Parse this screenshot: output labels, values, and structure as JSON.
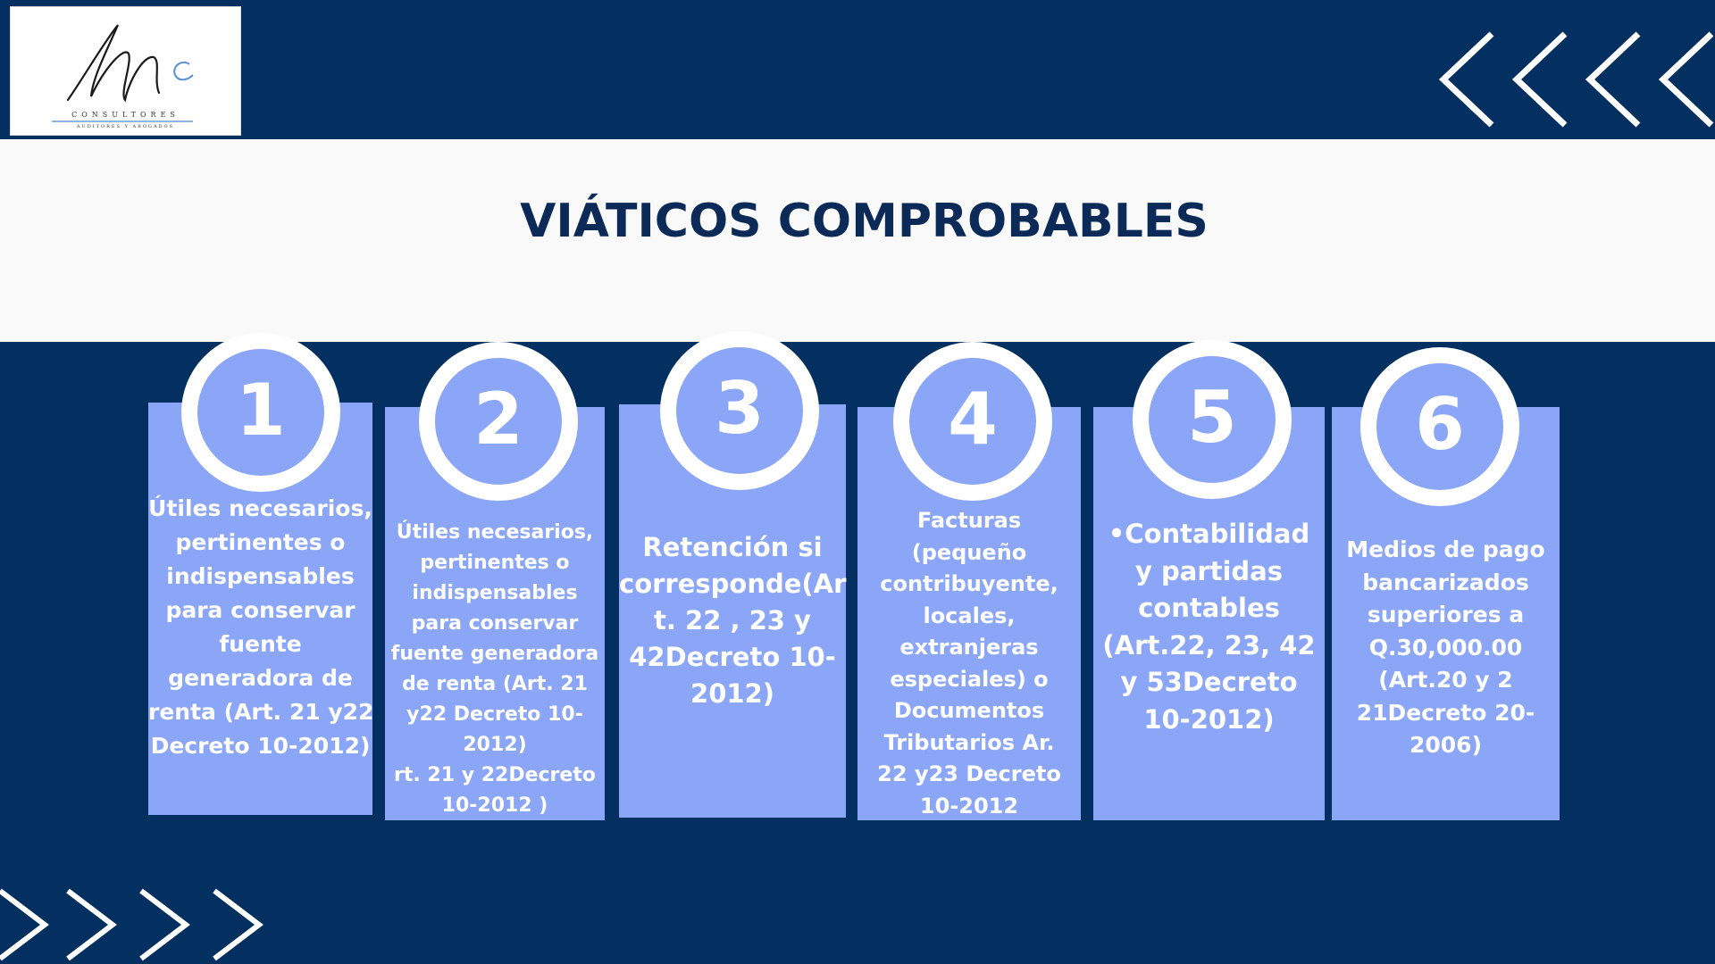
{
  "logo": {
    "mark": "Mc",
    "line1": "CONSULTORES",
    "line2": "AUDITORES Y ABOGADOS"
  },
  "title": "VIÁTICOS COMPROBABLES",
  "colors": {
    "background": "#033060",
    "band": "#f9f9fa",
    "title": "#0b2a57",
    "card": "#8ba6f6",
    "text": "#ffffff"
  },
  "decorations": {
    "top_right": "chevron-left-icon",
    "bottom_left": "chevron-right-icon"
  },
  "cards": [
    {
      "number": "1",
      "lines": [
        "Útiles necesarios,",
        "pertinentes o",
        "indispensables",
        "para conservar",
        "fuente",
        "generadora de",
        "renta (Art. 21 y22",
        "Decreto 10-2012)"
      ]
    },
    {
      "number": "2",
      "lines": [
        "Útiles necesarios,",
        "pertinentes o",
        "indispensables",
        "para conservar",
        "fuente generadora",
        "de renta (Art. 21",
        "y22 Decreto 10-",
        "2012)",
        "rt. 21 y 22Decreto",
        "10-2012 )"
      ]
    },
    {
      "number": "3",
      "lines": [
        "Retención si",
        "corresponde(Ar",
        "t. 22 , 23 y",
        "42Decreto 10-",
        "2012)"
      ]
    },
    {
      "number": "4",
      "lines": [
        "Facturas",
        "(pequeño",
        "contribuyente,",
        "locales,",
        "extranjeras",
        "especiales) o",
        "Documentos",
        "Tributarios Ar.",
        "22 y23 Decreto",
        "10-2012"
      ]
    },
    {
      "number": "5",
      "lines": [
        "•Contabilidad",
        "y partidas",
        "contables",
        "(Art.22, 23, 42",
        "y 53Decreto",
        "10-2012)"
      ]
    },
    {
      "number": "6",
      "lines": [
        "Medios de pago",
        "bancarizados",
        "superiores a",
        "Q.30,000.00",
        "(Art.20 y 2",
        "21Decreto 20-",
        "2006)"
      ]
    }
  ]
}
